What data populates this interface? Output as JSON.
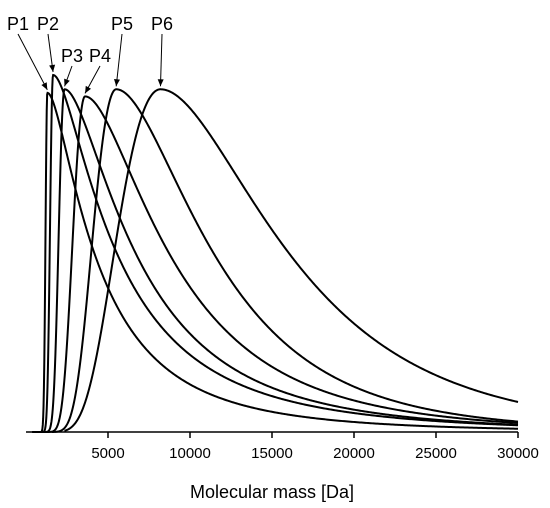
{
  "chart_data": {
    "type": "line",
    "title": "",
    "xlabel": "Molecular mass [Da]",
    "ylabel": "",
    "xlim": [
      0,
      30000
    ],
    "xticks": [
      5000,
      10000,
      15000,
      20000,
      25000,
      30000
    ],
    "grid": false,
    "legend": "none",
    "line_color": "#000000",
    "series": [
      {
        "name": "P1",
        "peak_x": 1300,
        "peak_y": 0.95,
        "shape": [
          1.09,
          2.8
        ]
      },
      {
        "name": "P2",
        "peak_x": 1650,
        "peak_y": 1.0,
        "shape": [
          1.12,
          2.8
        ]
      },
      {
        "name": "P3",
        "peak_x": 2350,
        "peak_y": 0.96,
        "shape": [
          1.17,
          2.5
        ]
      },
      {
        "name": "P4",
        "peak_x": 3600,
        "peak_y": 0.94,
        "shape": [
          1.25,
          2.2
        ]
      },
      {
        "name": "P5",
        "peak_x": 5500,
        "peak_y": 0.96,
        "shape": [
          1.33,
          1.9
        ]
      },
      {
        "name": "P6",
        "peak_x": 8200,
        "peak_y": 0.96,
        "shape": [
          1.45,
          1.8
        ]
      }
    ],
    "annotations": [
      {
        "text": "P1",
        "target": "P1"
      },
      {
        "text": "P2",
        "target": "P2"
      },
      {
        "text": "P3",
        "target": "P3"
      },
      {
        "text": "P4",
        "target": "P4"
      },
      {
        "text": "P5",
        "target": "P5"
      },
      {
        "text": "P6",
        "target": "P6"
      }
    ]
  }
}
